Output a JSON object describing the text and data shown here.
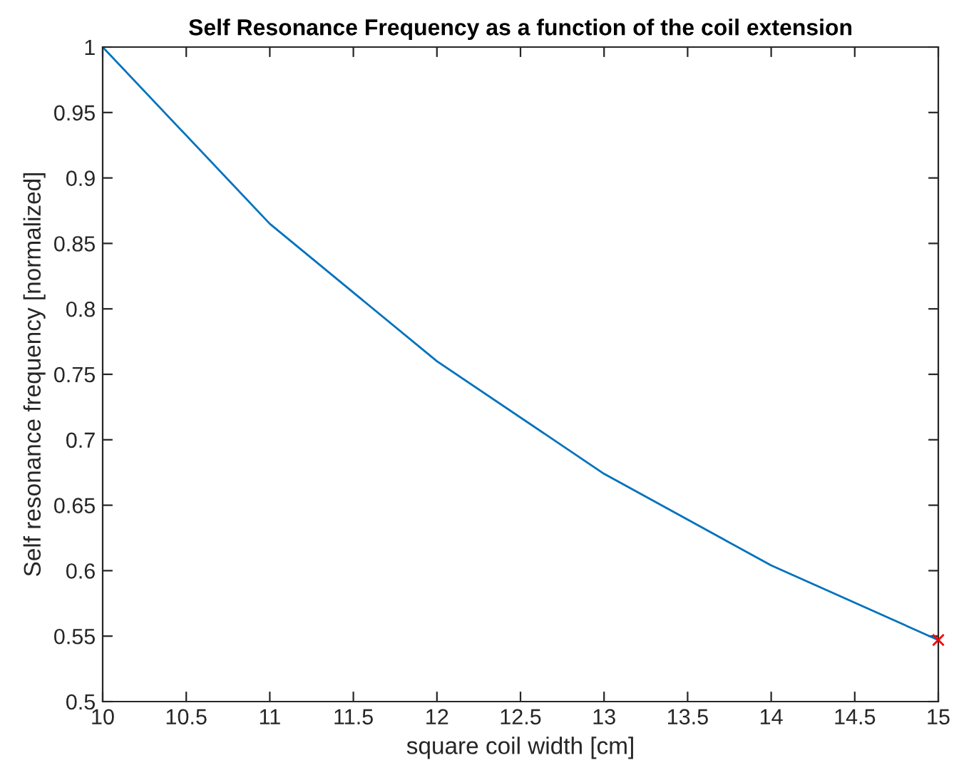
{
  "chart_data": {
    "type": "line",
    "title": "Self Resonance Frequency as a function of the coil extension",
    "xlabel": "square coil width [cm]",
    "ylabel": "Self resonance frequency [normalized]",
    "x": [
      10,
      11,
      12,
      13,
      14,
      15
    ],
    "series": [
      {
        "color": "#0072bd",
        "values": [
          1.0,
          0.865,
          0.76,
          0.674,
          0.604,
          0.547
        ],
        "marker": "none"
      },
      {
        "type": "scatter",
        "color": "#ff0000",
        "x": [
          15
        ],
        "values": [
          0.547
        ],
        "marker": "cross"
      }
    ],
    "xlim": [
      10,
      15
    ],
    "xticks": [
      10,
      10.5,
      11,
      11.5,
      12,
      12.5,
      13,
      13.5,
      14,
      14.5,
      15
    ],
    "ylim": [
      0.5,
      1
    ],
    "yticks": [
      0.5,
      0.55,
      0.6,
      0.65,
      0.7,
      0.75,
      0.8,
      0.85,
      0.9,
      0.95,
      1
    ],
    "grid": false
  }
}
